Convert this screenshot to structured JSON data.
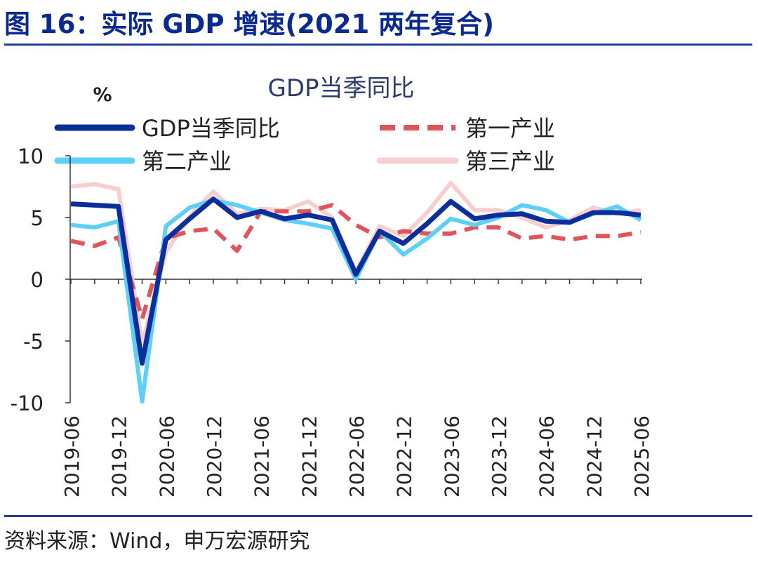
{
  "figure": {
    "heading": "图 16：实际 GDP 增速(2021 两年复合)",
    "source": "资料来源：Wind，申万宏源研究"
  },
  "chart_data": {
    "type": "line",
    "title": "GDP当季同比",
    "ylabel": "%",
    "xlabel": "",
    "ylim": [
      -10,
      10
    ],
    "yticks": [
      "10",
      "5",
      "0",
      "-5",
      "-10"
    ],
    "xticklabels": [
      "2019-06",
      "2019-12",
      "2020-06",
      "2020-12",
      "2021-06",
      "2021-12",
      "2022-06",
      "2022-12",
      "2023-06",
      "2023-12",
      "2024-06",
      "2024-12",
      "2025-06"
    ],
    "x": [
      "2019-06",
      "2019-09",
      "2019-12",
      "2020-03",
      "2020-06",
      "2020-09",
      "2020-12",
      "2021-03",
      "2021-06",
      "2021-09",
      "2021-12",
      "2022-03",
      "2022-06",
      "2022-09",
      "2022-12",
      "2023-03",
      "2023-06",
      "2023-09",
      "2023-12",
      "2024-03",
      "2024-06",
      "2024-09",
      "2024-12",
      "2025-03",
      "2025-06"
    ],
    "grid": false,
    "legend_position": "top",
    "series": [
      {
        "name": "GDP当季同比",
        "color": "#0b2f9a",
        "dash": "solid",
        "values": [
          6.1,
          6.0,
          5.9,
          -6.8,
          3.2,
          4.9,
          6.5,
          5.0,
          5.5,
          4.9,
          5.2,
          4.8,
          0.4,
          3.9,
          2.9,
          4.5,
          6.3,
          4.9,
          5.2,
          5.3,
          4.7,
          4.6,
          5.4,
          5.4,
          5.2
        ]
      },
      {
        "name": "第一产业",
        "color": "#e0545a",
        "dash": "dashed",
        "values": [
          3.1,
          2.7,
          3.4,
          -3.2,
          3.3,
          3.9,
          4.1,
          2.3,
          5.5,
          5.5,
          5.5,
          6.0,
          4.4,
          3.4,
          3.9,
          3.7,
          3.7,
          4.2,
          4.2,
          3.3,
          3.5,
          3.2,
          3.5,
          3.5,
          3.8
        ]
      },
      {
        "name": "第二产业",
        "color": "#5ecff6",
        "dash": "solid",
        "values": [
          4.4,
          4.2,
          4.7,
          -9.9,
          4.3,
          5.8,
          6.4,
          6.0,
          5.4,
          4.8,
          4.5,
          4.1,
          0.0,
          3.9,
          2.0,
          3.3,
          4.9,
          4.4,
          5.0,
          6.0,
          5.6,
          4.6,
          5.3,
          5.9,
          4.8
        ]
      },
      {
        "name": "第三产业",
        "color": "#f8cfd0",
        "dash": "solid",
        "values": [
          7.5,
          7.7,
          7.3,
          -5.2,
          2.2,
          5.1,
          7.1,
          5.3,
          5.7,
          5.6,
          6.3,
          5.0,
          0.6,
          4.3,
          3.5,
          5.4,
          7.8,
          5.6,
          5.6,
          5.0,
          4.2,
          4.8,
          5.8,
          5.3,
          5.6
        ]
      }
    ]
  }
}
